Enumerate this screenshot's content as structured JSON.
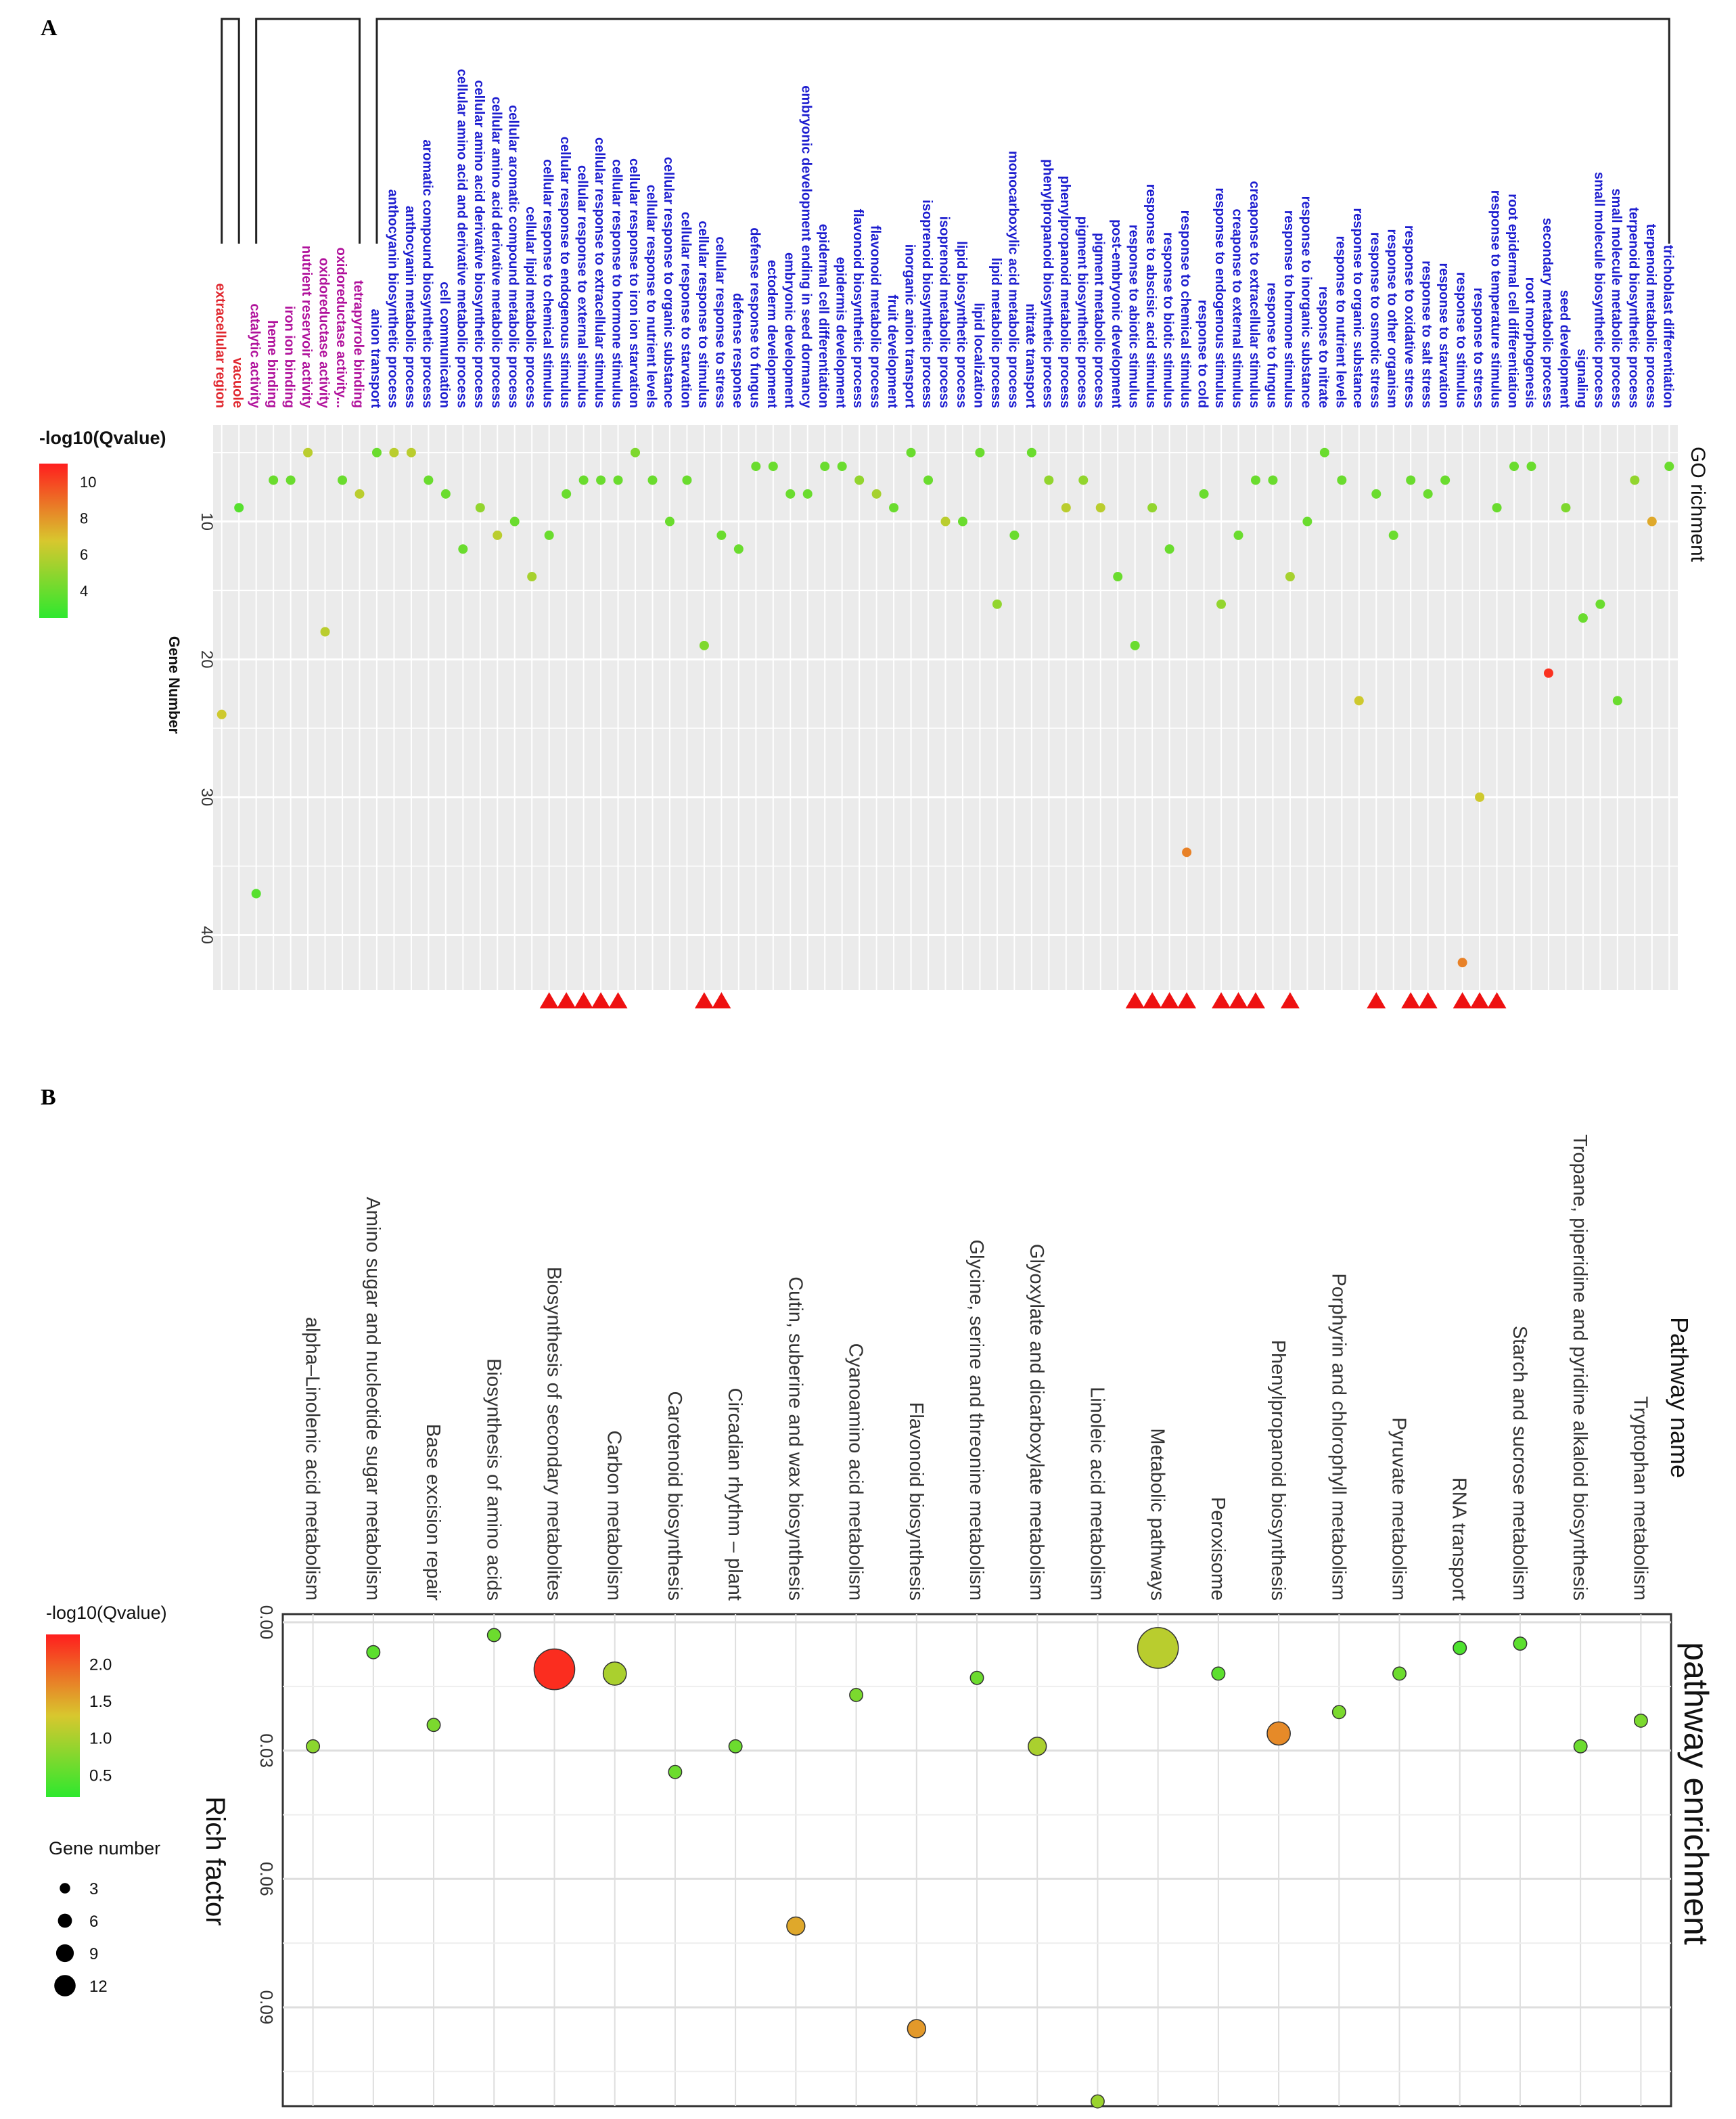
{
  "figure": {
    "panel_a_label": "A",
    "panel_b_label": "B"
  },
  "colors": {
    "low": "#2ee82e",
    "mid": "#d8c72e",
    "high": "#ff1e1e",
    "component_label": "#e0262e",
    "function_label": "#b0119b",
    "process_label": "#1c1ccf",
    "panel_bg": "#ebebeb",
    "marker": "#ee1111"
  },
  "chart_data": [
    {
      "type": "scatter",
      "panel": "A",
      "title": "GO richment",
      "ylabel": "Gene Number",
      "ylim": [
        3,
        44
      ],
      "yticks": [
        10,
        20,
        30,
        40
      ],
      "legend": {
        "title": "-log10(Qvalue)",
        "ticks": [
          4,
          6,
          8,
          10
        ],
        "range": [
          2.5,
          11
        ],
        "placement": "top-left"
      },
      "categories": [
        {
          "name": "extracellular region",
          "group": "component",
          "genes": 24,
          "q": 6.5
        },
        {
          "name": "vacuole",
          "group": "component",
          "genes": 9,
          "q": 3.5
        },
        {
          "name": "catalytic activity",
          "group": "function",
          "genes": 37,
          "q": 3.5
        },
        {
          "name": "heme binding",
          "group": "function",
          "genes": 7,
          "q": 4
        },
        {
          "name": "iron ion binding",
          "group": "function",
          "genes": 7,
          "q": 4
        },
        {
          "name": "nutrient reservoir activity",
          "group": "function",
          "genes": 5,
          "q": 6
        },
        {
          "name": "oxidoreductase activity",
          "group": "function",
          "genes": 18,
          "q": 6
        },
        {
          "name": "oxidoreductase activity...",
          "group": "function",
          "genes": 7,
          "q": 4
        },
        {
          "name": "tetrapyrrole binding",
          "group": "function",
          "genes": 8,
          "q": 6
        },
        {
          "name": "anion transport",
          "group": "process",
          "genes": 5,
          "q": 4
        },
        {
          "name": "anthocyanin biosynthetic process",
          "group": "process",
          "genes": 5,
          "q": 6
        },
        {
          "name": "anthocyanin metabolic process",
          "group": "process",
          "genes": 5,
          "q": 6
        },
        {
          "name": "aromatic compound biosynthetic process",
          "group": "process",
          "genes": 7,
          "q": 4
        },
        {
          "name": "cell communication",
          "group": "process",
          "genes": 8,
          "q": 4
        },
        {
          "name": "cellular amino acid and derivative metabolic process",
          "group": "process",
          "genes": 12,
          "q": 4
        },
        {
          "name": "cellular amino acid derivative biosynthetic process",
          "group": "process",
          "genes": 9,
          "q": 5
        },
        {
          "name": "cellular amino acid derivative metabolic process",
          "group": "process",
          "genes": 11,
          "q": 6
        },
        {
          "name": "cellular aromatic compound metabolic process",
          "group": "process",
          "genes": 10,
          "q": 4
        },
        {
          "name": "cellular lipid metabolic process",
          "group": "process",
          "genes": 14,
          "q": 5.5
        },
        {
          "name": "cellular response to chemical stimulus",
          "group": "process",
          "genes": 11,
          "q": 4
        },
        {
          "name": "cellular response to endogenous stimulus",
          "group": "process",
          "genes": 8,
          "q": 4
        },
        {
          "name": "cellular response to external stimulus",
          "group": "process",
          "genes": 7,
          "q": 4
        },
        {
          "name": "cellular response to extracellular stimulus",
          "group": "process",
          "genes": 7,
          "q": 4
        },
        {
          "name": "cellular response to hormone stimulus",
          "group": "process",
          "genes": 7,
          "q": 4
        },
        {
          "name": "cellular response to iron ion starvation",
          "group": "process",
          "genes": 5,
          "q": 4.5
        },
        {
          "name": "cellular response to nutrient levels",
          "group": "process",
          "genes": 7,
          "q": 4
        },
        {
          "name": "cellular response to organic substance",
          "group": "process",
          "genes": 10,
          "q": 4
        },
        {
          "name": "cellular response to starvation",
          "group": "process",
          "genes": 7,
          "q": 4
        },
        {
          "name": "cellular response to stimulus",
          "group": "process",
          "genes": 19,
          "q": 4.5
        },
        {
          "name": "cellular response to stress",
          "group": "process",
          "genes": 11,
          "q": 4
        },
        {
          "name": "defense response",
          "group": "process",
          "genes": 12,
          "q": 4
        },
        {
          "name": "defense response to fungus",
          "group": "process",
          "genes": 6,
          "q": 4
        },
        {
          "name": "ectoderm development",
          "group": "process",
          "genes": 6,
          "q": 4
        },
        {
          "name": "embryonic development",
          "group": "process",
          "genes": 8,
          "q": 4
        },
        {
          "name": "embryonic development ending in seed dormancy",
          "group": "process",
          "genes": 8,
          "q": 4
        },
        {
          "name": "epidermal cell differentiation",
          "group": "process",
          "genes": 6,
          "q": 4
        },
        {
          "name": "epidermis development",
          "group": "process",
          "genes": 6,
          "q": 4
        },
        {
          "name": "flavonoid biosynthetic process",
          "group": "process",
          "genes": 7,
          "q": 5
        },
        {
          "name": "flavonoid metabolic process",
          "group": "process",
          "genes": 8,
          "q": 5.5
        },
        {
          "name": "fruit development",
          "group": "process",
          "genes": 9,
          "q": 4
        },
        {
          "name": "inorganic anion transport",
          "group": "process",
          "genes": 5,
          "q": 4
        },
        {
          "name": "isoprenoid biosynthetic process",
          "group": "process",
          "genes": 7,
          "q": 4
        },
        {
          "name": "isoprenoid metabolic process",
          "group": "process",
          "genes": 10,
          "q": 6
        },
        {
          "name": "lipid biosynthetic process",
          "group": "process",
          "genes": 10,
          "q": 4
        },
        {
          "name": "lipid localization",
          "group": "process",
          "genes": 5,
          "q": 4
        },
        {
          "name": "lipid metabolic process",
          "group": "process",
          "genes": 16,
          "q": 5
        },
        {
          "name": "monocarboxylic acid metabolic process",
          "group": "process",
          "genes": 11,
          "q": 4
        },
        {
          "name": "nitrate transport",
          "group": "process",
          "genes": 5,
          "q": 4
        },
        {
          "name": "phenylpropanoid biosynthetic process",
          "group": "process",
          "genes": 7,
          "q": 5
        },
        {
          "name": "phenylpropanoid metabolic process",
          "group": "process",
          "genes": 9,
          "q": 6
        },
        {
          "name": "pigment biosynthetic process",
          "group": "process",
          "genes": 7,
          "q": 5
        },
        {
          "name": "pigment metabolic process",
          "group": "process",
          "genes": 9,
          "q": 6
        },
        {
          "name": "post-embryonic development",
          "group": "process",
          "genes": 14,
          "q": 4
        },
        {
          "name": "response to abiotic stimulus",
          "group": "process",
          "genes": 19,
          "q": 4
        },
        {
          "name": "response to abscisic acid stimulus",
          "group": "process",
          "genes": 9,
          "q": 5
        },
        {
          "name": "response to biotic stimulus",
          "group": "process",
          "genes": 12,
          "q": 4
        },
        {
          "name": "response to chemical stimulus",
          "group": "process",
          "genes": 34,
          "q": 8.5
        },
        {
          "name": "response to cold",
          "group": "process",
          "genes": 8,
          "q": 4
        },
        {
          "name": "response to endogenous stimulus",
          "group": "process",
          "genes": 16,
          "q": 5
        },
        {
          "name": "creaponse to external stimulus",
          "group": "process",
          "genes": 11,
          "q": 4
        },
        {
          "name": "creaponse to extracellular stimulus",
          "group": "process",
          "genes": 7,
          "q": 4
        },
        {
          "name": "response to fungus",
          "group": "process",
          "genes": 7,
          "q": 4
        },
        {
          "name": "response to hormone stimulus",
          "group": "process",
          "genes": 14,
          "q": 5.5
        },
        {
          "name": "response to inorganic substance",
          "group": "process",
          "genes": 10,
          "q": 4
        },
        {
          "name": "response to nitrate",
          "group": "process",
          "genes": 5,
          "q": 4
        },
        {
          "name": "response to nutrient levels",
          "group": "process",
          "genes": 7,
          "q": 4
        },
        {
          "name": "response to organic substance",
          "group": "process",
          "genes": 23,
          "q": 6.5
        },
        {
          "name": "response to osmotic stress",
          "group": "process",
          "genes": 8,
          "q": 4
        },
        {
          "name": "response to other organism",
          "group": "process",
          "genes": 11,
          "q": 4
        },
        {
          "name": "response to oxidative stress",
          "group": "process",
          "genes": 7,
          "q": 4
        },
        {
          "name": "response to salt stress",
          "group": "process",
          "genes": 8,
          "q": 4
        },
        {
          "name": "response to starvation",
          "group": "process",
          "genes": 7,
          "q": 4
        },
        {
          "name": "response to stimulus",
          "group": "process",
          "genes": 42,
          "q": 8.5
        },
        {
          "name": "response to stress",
          "group": "process",
          "genes": 30,
          "q": 6.5
        },
        {
          "name": "response to temperature stimulus",
          "group": "process",
          "genes": 9,
          "q": 4
        },
        {
          "name": "root epidermal cell differentiation",
          "group": "process",
          "genes": 6,
          "q": 4
        },
        {
          "name": "root morphogenesis",
          "group": "process",
          "genes": 6,
          "q": 4
        },
        {
          "name": "secondary metabolic process",
          "group": "process",
          "genes": 21,
          "q": 10.5
        },
        {
          "name": "seed development",
          "group": "process",
          "genes": 9,
          "q": 4.5
        },
        {
          "name": "signaling",
          "group": "process",
          "genes": 17,
          "q": 4
        },
        {
          "name": "small molecule biosynthetic process",
          "group": "process",
          "genes": 16,
          "q": 4
        },
        {
          "name": "small molecule metabolic process",
          "group": "process",
          "genes": 23,
          "q": 4
        },
        {
          "name": "terpenoid biosynthetic process",
          "group": "process",
          "genes": 7,
          "q": 5
        },
        {
          "name": "terpenoid metabolic process",
          "group": "process",
          "genes": 10,
          "q": 7.5
        },
        {
          "name": "trichoblast differentiation",
          "group": "process",
          "genes": 6,
          "q": 4
        }
      ],
      "marked_categories": [
        "cellular response to chemical stimulus",
        "cellular response to endogenous stimulus",
        "cellular response to external stimulus",
        "cellular response to extracellular stimulus",
        "cellular response to hormone stimulus",
        "cellular response to stimulus",
        "cellular response to stress",
        "response to abiotic stimulus",
        "response to abscisic acid stimulus",
        "response to biotic stimulus",
        "response to chemical stimulus",
        "response to endogenous stimulus",
        "creaponse to external stimulus",
        "creaponse to extracellular stimulus",
        "response to hormone stimulus",
        "response to osmotic stress",
        "response to oxidative stress",
        "response to salt stress",
        "response to stimulus",
        "response to stress",
        "response to temperature stimulus"
      ]
    },
    {
      "type": "scatter",
      "panel": "B",
      "title": "pathway enrichment",
      "xlabel": "Pathway name",
      "ylabel": "Rich factor",
      "ylim": [
        0.0,
        0.115
      ],
      "yticks": [
        0.0,
        0.03,
        0.06,
        0.09
      ],
      "ytick_labels": [
        "0.00",
        "0.03",
        "0.06",
        "0.09"
      ],
      "legend_color": {
        "title": "-log10(Qvalue)",
        "ticks": [
          0.5,
          1.0,
          1.5,
          2.0
        ],
        "tick_labels": [
          "0.5",
          "1.0",
          "1.5",
          "2.0"
        ],
        "range": [
          0.2,
          2.4
        ]
      },
      "legend_size": {
        "title": "Gene number",
        "ticks": [
          3,
          6,
          9,
          12
        ]
      },
      "categories": [
        {
          "name": "alpha–Linolenic acid metabolism",
          "rich": 0.029,
          "genes": 2,
          "q": 0.8
        },
        {
          "name": "Amino sugar and nucleotide sugar metabolism",
          "rich": 0.007,
          "genes": 2,
          "q": 0.5
        },
        {
          "name": "Base excision repair",
          "rich": 0.024,
          "genes": 2,
          "q": 0.7
        },
        {
          "name": "Biosynthesis of amino acids",
          "rich": 0.003,
          "genes": 2,
          "q": 0.6
        },
        {
          "name": "Biosynthesis of secondary metabolites",
          "rich": 0.011,
          "genes": 13,
          "q": 2.3
        },
        {
          "name": "Carbon metabolism",
          "rich": 0.012,
          "genes": 6,
          "q": 1.0
        },
        {
          "name": "Carotenoid biosynthesis",
          "rich": 0.035,
          "genes": 2,
          "q": 0.6
        },
        {
          "name": "Circadian rhythm – plant",
          "rich": 0.029,
          "genes": 2,
          "q": 0.6
        },
        {
          "name": "Cutin, suberine and wax biosynthesis",
          "rich": 0.071,
          "genes": 4,
          "q": 1.5
        },
        {
          "name": "Cyanoamino acid metabolism",
          "rich": 0.017,
          "genes": 2,
          "q": 0.7
        },
        {
          "name": "Flavonoid biosynthesis",
          "rich": 0.095,
          "genes": 4,
          "q": 1.6
        },
        {
          "name": "Glycine, serine and threonine metabolism",
          "rich": 0.013,
          "genes": 2,
          "q": 0.6
        },
        {
          "name": "Glyoxylate and dicarboxylate metabolism",
          "rich": 0.029,
          "genes": 4,
          "q": 1.0
        },
        {
          "name": "Linoleic acid metabolism",
          "rich": 0.112,
          "genes": 2,
          "q": 0.9
        },
        {
          "name": "Metabolic pathways",
          "rich": 0.006,
          "genes": 13,
          "q": 1.1
        },
        {
          "name": "Peroxisome",
          "rich": 0.012,
          "genes": 2,
          "q": 0.5
        },
        {
          "name": "Phenylpropanoid biosynthesis",
          "rich": 0.026,
          "genes": 6,
          "q": 1.7
        },
        {
          "name": "Porphyrin and chlorophyll metabolism",
          "rich": 0.021,
          "genes": 2,
          "q": 0.7
        },
        {
          "name": "Pyruvate metabolism",
          "rich": 0.012,
          "genes": 2,
          "q": 0.6
        },
        {
          "name": "RNA transport",
          "rich": 0.006,
          "genes": 2,
          "q": 0.4
        },
        {
          "name": "Starch and sucrose metabolism",
          "rich": 0.005,
          "genes": 2,
          "q": 0.5
        },
        {
          "name": "Tropane, piperidine and pyridine alkaloid biosynthesis",
          "rich": 0.029,
          "genes": 2,
          "q": 0.6
        },
        {
          "name": "Tryptophan metabolism",
          "rich": 0.023,
          "genes": 2,
          "q": 0.7
        }
      ]
    }
  ]
}
